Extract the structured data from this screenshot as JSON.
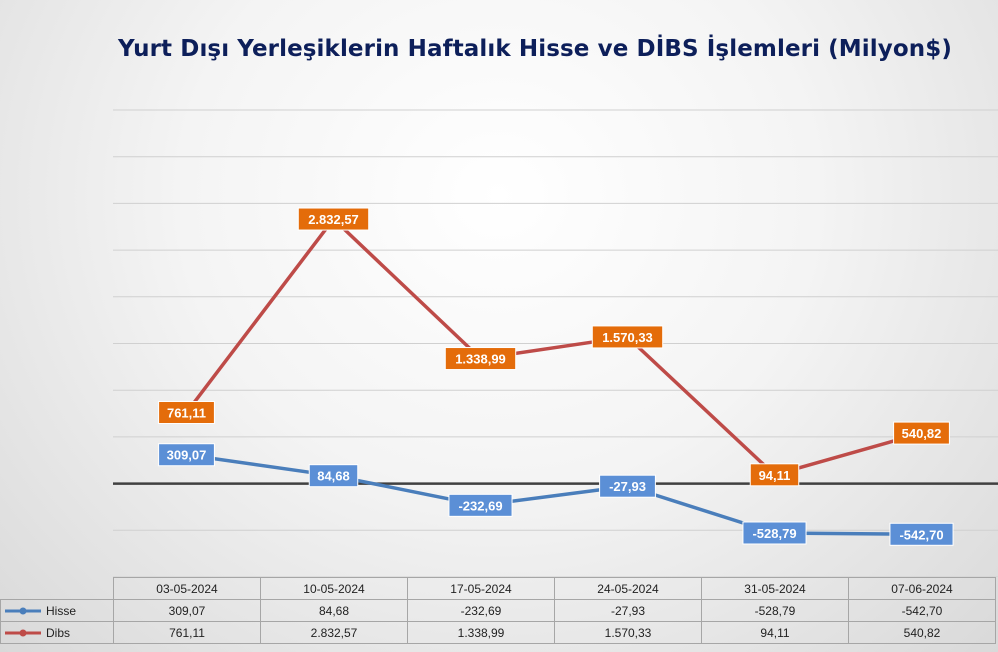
{
  "chart_data": {
    "type": "line",
    "title": "Yurt Dışı Yerleşiklerin Haftalık Hisse ve DİBS İşlemleri (Milyon$)",
    "categories": [
      "03-05-2024",
      "10-05-2024",
      "17-05-2024",
      "24-05-2024",
      "31-05-2024",
      "07-06-2024"
    ],
    "ylim": [
      -1000,
      4000
    ],
    "grid": true,
    "legend": "data-table",
    "series": [
      {
        "name": "Hisse",
        "color": "#4a7ebb",
        "label_color": "#5b8fd6",
        "values": [
          309.07,
          84.68,
          -232.69,
          -27.93,
          -528.79,
          -542.7
        ],
        "labels": [
          "309,07",
          "84,68",
          "-232,69",
          "-27,93",
          "-528,79",
          "-542,70"
        ]
      },
      {
        "name": "Dibs",
        "color": "#be4b48",
        "label_color": "#e46c0a",
        "values": [
          761.11,
          2832.57,
          1338.99,
          1570.33,
          94.11,
          540.82
        ],
        "labels": [
          "761,11",
          "2.832,57",
          "1.338,99",
          "1.570,33",
          "94,11",
          "540,82"
        ]
      }
    ]
  }
}
